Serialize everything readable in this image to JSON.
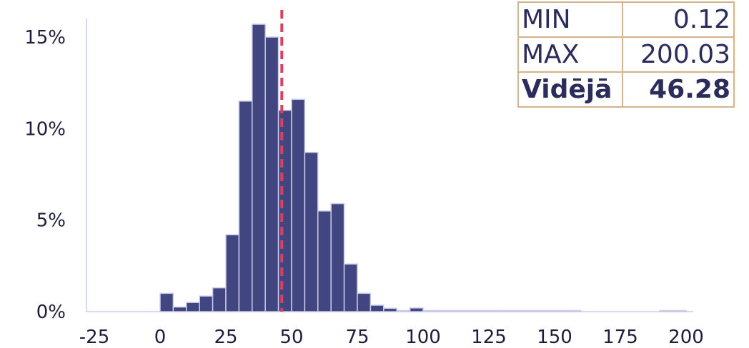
{
  "chart_data": {
    "type": "bar",
    "bin_width": 5,
    "bins": [
      {
        "x0": -25,
        "value": 0
      },
      {
        "x0": -20,
        "value": 0
      },
      {
        "x0": -15,
        "value": 0
      },
      {
        "x0": -10,
        "value": 0
      },
      {
        "x0": -5,
        "value": 0
      },
      {
        "x0": 0,
        "value": 1.0
      },
      {
        "x0": 5,
        "value": 0.25
      },
      {
        "x0": 10,
        "value": 0.5
      },
      {
        "x0": 15,
        "value": 0.85
      },
      {
        "x0": 20,
        "value": 1.3
      },
      {
        "x0": 25,
        "value": 4.2
      },
      {
        "x0": 30,
        "value": 11.5
      },
      {
        "x0": 35,
        "value": 15.7
      },
      {
        "x0": 40,
        "value": 15.0
      },
      {
        "x0": 45,
        "value": 11.0
      },
      {
        "x0": 50,
        "value": 11.6
      },
      {
        "x0": 55,
        "value": 8.7
      },
      {
        "x0": 60,
        "value": 5.5
      },
      {
        "x0": 65,
        "value": 5.9
      },
      {
        "x0": 70,
        "value": 2.6
      },
      {
        "x0": 75,
        "value": 1.0
      },
      {
        "x0": 80,
        "value": 0.35
      },
      {
        "x0": 85,
        "value": 0.18
      },
      {
        "x0": 90,
        "value": 0.02
      },
      {
        "x0": 95,
        "value": 0.2
      },
      {
        "x0": 100,
        "value": 0.02
      },
      {
        "x0": 105,
        "value": 0.02
      },
      {
        "x0": 110,
        "value": 0.02
      },
      {
        "x0": 115,
        "value": 0.02
      },
      {
        "x0": 120,
        "value": 0.02
      },
      {
        "x0": 125,
        "value": 0.02
      },
      {
        "x0": 130,
        "value": 0.02
      },
      {
        "x0": 135,
        "value": 0.02
      },
      {
        "x0": 140,
        "value": 0.02
      },
      {
        "x0": 145,
        "value": 0.02
      },
      {
        "x0": 150,
        "value": 0.02
      },
      {
        "x0": 155,
        "value": 0.02
      },
      {
        "x0": 160,
        "value": 0
      },
      {
        "x0": 165,
        "value": 0
      },
      {
        "x0": 170,
        "value": 0
      },
      {
        "x0": 175,
        "value": 0
      },
      {
        "x0": 180,
        "value": 0
      },
      {
        "x0": 185,
        "value": 0
      },
      {
        "x0": 190,
        "value": 0.02
      },
      {
        "x0": 195,
        "value": 0.02
      }
    ],
    "mean_line": 46.28,
    "xlim": [
      -25,
      200
    ],
    "ylim": [
      0,
      16
    ],
    "x_ticks": [
      -25,
      0,
      25,
      50,
      75,
      100,
      125,
      150,
      175,
      200
    ],
    "x_tick_labels": [
      "-25",
      "0",
      "25",
      "50",
      "75",
      "100",
      "125",
      "150",
      "175",
      "200"
    ],
    "y_ticks": [
      0,
      5,
      10,
      15
    ],
    "y_tick_labels": [
      "0%",
      "5%",
      "10%",
      "15%"
    ],
    "grid": false,
    "colors": {
      "bar": "#414681",
      "bar_edge": "#c9cbe8",
      "mean_line": "#d9415f",
      "axis": "#d6d8ee",
      "table_border": "#d4b48c"
    }
  },
  "stats": {
    "min_label": "MIN",
    "min_value": "0.12",
    "max_label": "MAX",
    "max_value": "200.03",
    "mean_label": "Vidējā",
    "mean_value": "46.28"
  }
}
